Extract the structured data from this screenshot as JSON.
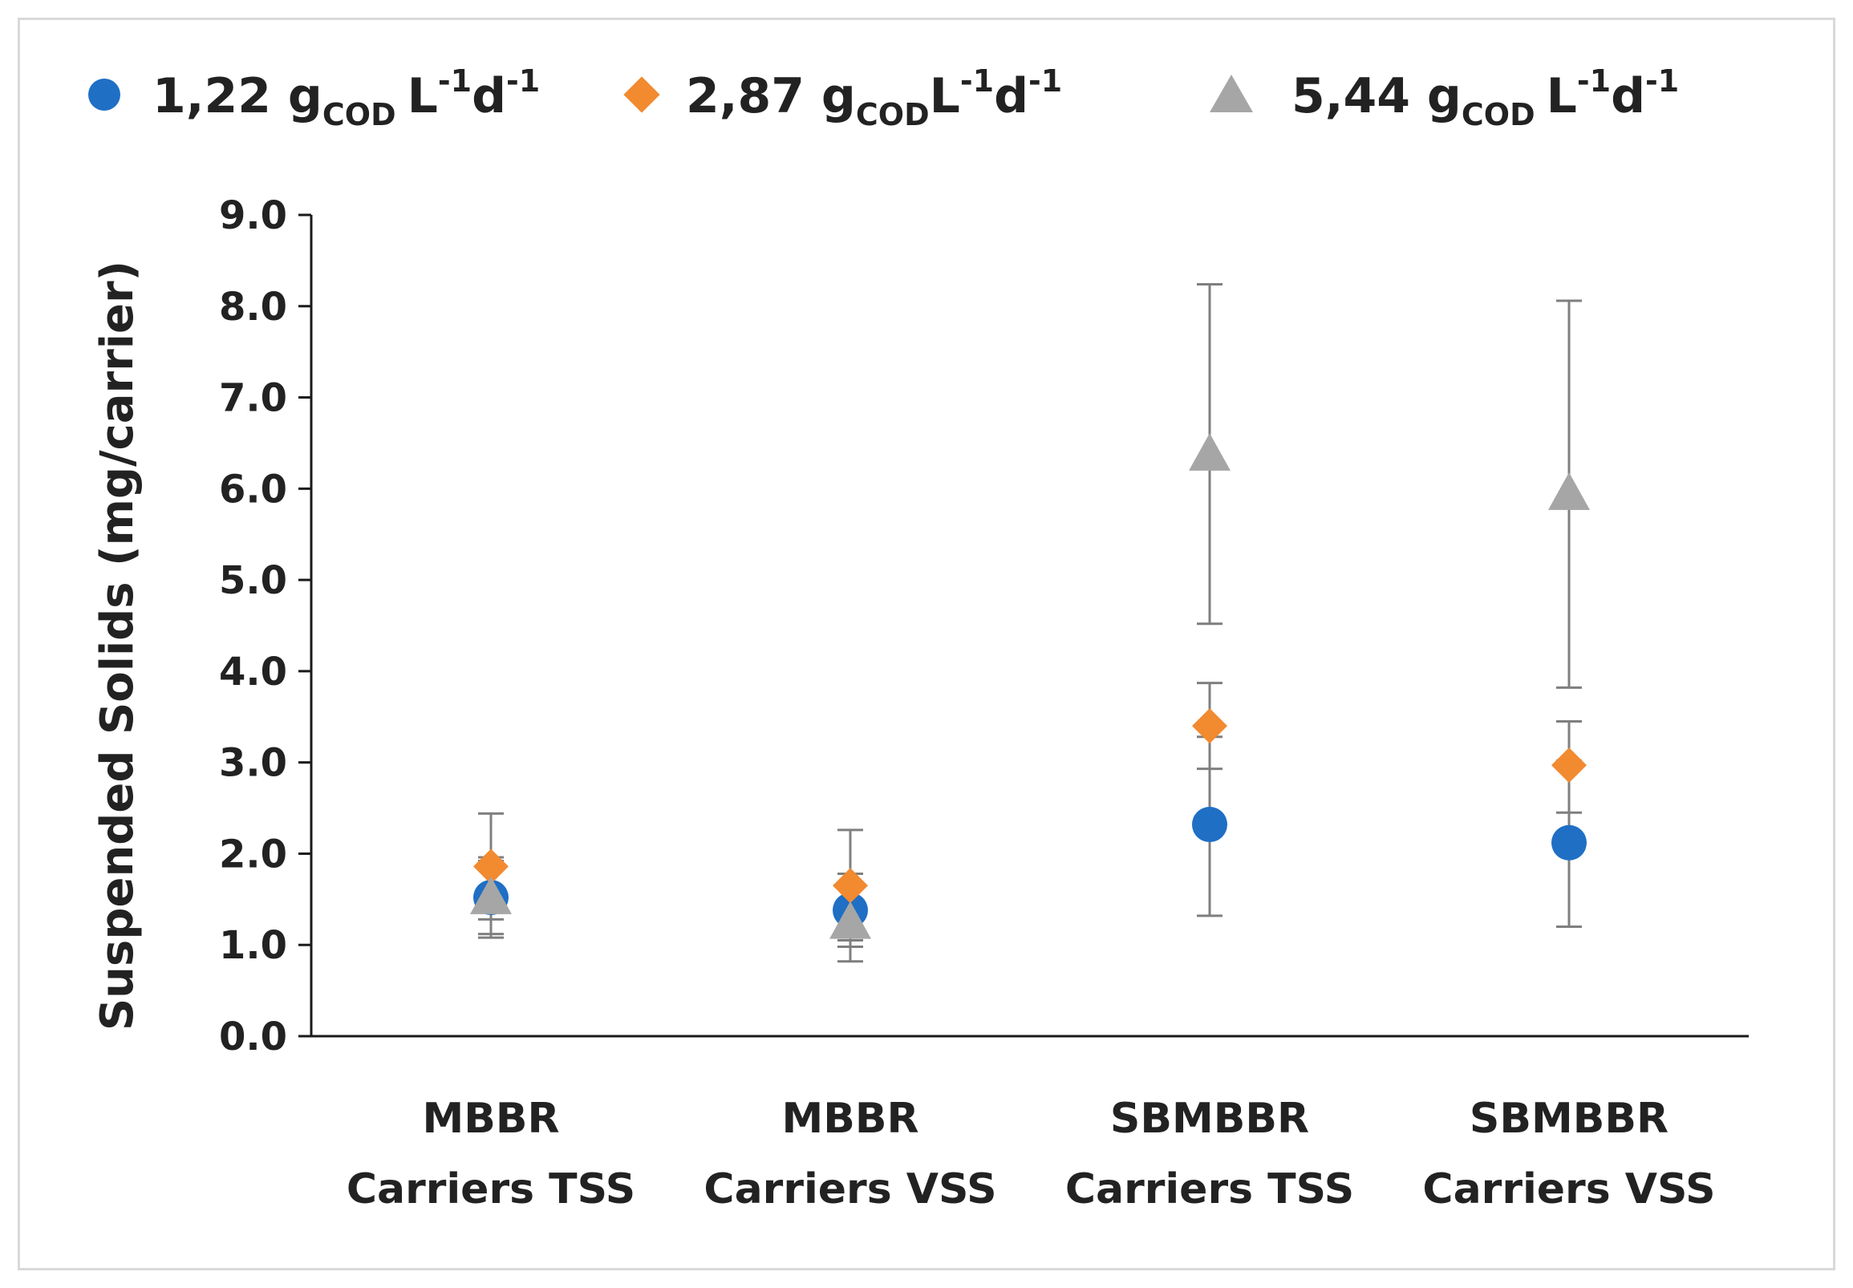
{
  "chart_data": {
    "type": "scatter",
    "title": "",
    "xlabel": "",
    "ylabel": "Suspended Solids (mg/carrier)",
    "ylim": [
      0,
      9
    ],
    "yticks": [
      "0.0",
      "1.0",
      "2.0",
      "3.0",
      "4.0",
      "5.0",
      "6.0",
      "7.0",
      "8.0",
      "9.0"
    ],
    "ytick_values": [
      0,
      1,
      2,
      3,
      4,
      5,
      6,
      7,
      8,
      9
    ],
    "categories": [
      [
        "MBBR",
        "Carriers TSS"
      ],
      [
        "MBBR",
        "Carriers VSS"
      ],
      [
        "SBMBBR",
        "Carriers TSS"
      ],
      [
        "SBMBBR",
        "Carriers VSS"
      ]
    ],
    "legend_position": "top",
    "series": [
      {
        "name": "1,22 gCOD L-1d-1",
        "label_main": "1,22 g",
        "label_sub": "COD",
        "label_unit": "L",
        "label_exp1": "-1",
        "label_d": "d",
        "label_exp2": "-1",
        "marker": "circle",
        "color": "#1f6fc5",
        "values": [
          1.52,
          1.38,
          2.32,
          2.12
        ],
        "err_low": [
          1.12,
          0.98,
          1.32,
          1.2
        ],
        "err_high": [
          1.92,
          1.78,
          3.28,
          3.02
        ]
      },
      {
        "name": "2,87 gCODL-1d-1",
        "label_main": "2,87 g",
        "label_sub": "COD",
        "label_unit": "L",
        "label_exp1": "-1",
        "label_d": "d",
        "label_exp2": "-1",
        "marker": "diamond",
        "color": "#f28a30",
        "values": [
          1.86,
          1.65,
          3.4,
          2.97
        ],
        "err_low": [
          1.28,
          1.05,
          2.93,
          2.45
        ],
        "err_high": [
          2.44,
          2.26,
          3.87,
          3.45
        ]
      },
      {
        "name": "5,44 gCOD L-1d-1",
        "label_main": "5,44 g",
        "label_sub": "COD",
        "label_unit": "L",
        "label_exp1": "-1",
        "label_d": "d",
        "label_exp2": "-1",
        "marker": "triangle",
        "color": "#a6a6a6",
        "values": [
          1.52,
          1.25,
          6.38,
          5.95
        ],
        "err_low": [
          1.08,
          0.82,
          4.52,
          3.82
        ],
        "err_high": [
          1.96,
          1.68,
          8.24,
          8.06
        ]
      }
    ]
  }
}
